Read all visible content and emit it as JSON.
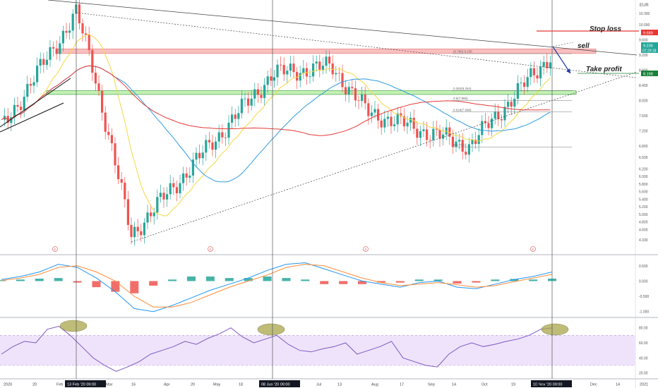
{
  "currency": "EUR",
  "colors": {
    "up": "#26a69a",
    "down": "#ef5350",
    "ma_fast": "#f5d742",
    "ma_mid": "#2e9be3",
    "ma_slow": "#e53935",
    "macd": "#2196f3",
    "signal": "#ff8c3a",
    "rsi_line": "#7e57c2",
    "rsi_band": "#efe3fb",
    "resistance_zone": "#f8b4b4",
    "support_zone": "#b9f0a6",
    "highlight_ellipse": "#a9a64a",
    "stop_loss": "#e53935",
    "price_tag": "#26a69a",
    "arrow": "#1f3aa6"
  },
  "annotations": {
    "stop_loss": "Stop loss",
    "sell": "sell",
    "take_profit": "Take profit"
  },
  "price_tags": {
    "stop_loss": "9.689",
    "current": "9.236",
    "countdown": "07:29:18",
    "take_profit": "8.198"
  },
  "time_labels": {
    "crosshair_1": "13 Feb '20   09:00",
    "crosshair_2": "08 Jun '20   09:00",
    "crosshair_3": "10 Nov '20   09:00"
  },
  "chart_data": [
    {
      "type": "candlestick",
      "y_ticks": [
        "10.300",
        "10.000",
        "9.600",
        "9.200",
        "8.800",
        "8.400",
        "8.000",
        "7.600",
        "7.200",
        "6.800",
        "6.500",
        "6.200",
        "6.000",
        "5.800",
        "5.600",
        "5.400",
        "5.200",
        "5.000",
        "4.800",
        "4.600",
        "4.330"
      ],
      "ylim": [
        4.33,
        10.5
      ],
      "x_ticks": [
        "2020",
        "20",
        "Feb",
        "13 Feb '20",
        "Mar",
        "16",
        "Apr",
        "20",
        "May",
        "18",
        "08 Jun '20",
        "Jul",
        "13",
        "Aug",
        "17",
        "Sep",
        "14",
        "Oct",
        "19",
        "Nov",
        "10 Nov '20",
        "Dec",
        "14",
        "2021"
      ],
      "fib_levels": [
        {
          "label": "(0.786) 9.236",
          "value": 9.236
        },
        {
          "label": "0.382(8.264)",
          "value": 8.264
        },
        {
          "label": "0.5(7.995)",
          "value": 8.0
        },
        {
          "label": "0.618(7.698)",
          "value": 7.698
        },
        {
          "label": "0(6.774)",
          "value": 6.774
        }
      ],
      "swing_points": [
        {
          "date": "13 Feb '20",
          "close": 10.3
        },
        {
          "date": "Mar",
          "close": 9.0
        },
        {
          "date": "16 Mar",
          "close": 4.46
        },
        {
          "date": "08 Jun '20",
          "close": 8.7
        },
        {
          "date": "Jul",
          "close": 8.9
        },
        {
          "date": "Aug",
          "close": 7.7
        },
        {
          "date": "Sep",
          "close": 6.8
        },
        {
          "date": "10 Nov '20",
          "close": 9.24
        }
      ],
      "moving_averages": [
        "yellow",
        "blue",
        "red"
      ],
      "resistance_zone": [
        9.24,
        9.36
      ],
      "support_zone": [
        8.16,
        8.26
      ],
      "stop_loss": 9.689,
      "take_profit": 8.198
    },
    {
      "type": "bar",
      "indicator": "MACD",
      "y_ticks": [
        "0.500",
        "0.000",
        "-0.500",
        "-1.000"
      ],
      "ylim": [
        -1.1,
        0.75
      ],
      "series": [
        {
          "name": "MACD",
          "values": [
            0.05,
            0.15,
            0.3,
            0.55,
            0.45,
            0.1,
            -0.35,
            -0.9,
            -1.0,
            -0.8,
            -0.55,
            -0.3,
            -0.1,
            0.1,
            0.35,
            0.55,
            0.6,
            0.4,
            0.2,
            0.0,
            -0.1,
            -0.2,
            -0.05,
            0.0,
            -0.2,
            -0.25,
            -0.1,
            0.05,
            0.15,
            0.3
          ]
        },
        {
          "name": "Signal",
          "values": [
            0.02,
            0.1,
            0.22,
            0.45,
            0.5,
            0.3,
            0.0,
            -0.5,
            -0.85,
            -0.85,
            -0.7,
            -0.45,
            -0.2,
            0.0,
            0.2,
            0.45,
            0.55,
            0.5,
            0.3,
            0.1,
            -0.05,
            -0.15,
            -0.1,
            -0.05,
            -0.12,
            -0.2,
            -0.15,
            -0.02,
            0.1,
            0.22
          ]
        }
      ]
    },
    {
      "type": "line",
      "indicator": "RSI",
      "y_ticks": [
        "80.00",
        "60.00",
        "40.00",
        "20.00"
      ],
      "ylim": [
        15,
        90
      ],
      "band": [
        30,
        70
      ],
      "series": [
        {
          "name": "RSI",
          "values": [
            45,
            55,
            62,
            60,
            78,
            82,
            70,
            55,
            40,
            30,
            22,
            28,
            35,
            45,
            50,
            55,
            62,
            58,
            66,
            72,
            80,
            68,
            60,
            65,
            70,
            58,
            50,
            48,
            52,
            55,
            60,
            45,
            50,
            55,
            62,
            40,
            35,
            30,
            28,
            45,
            55,
            60,
            55,
            58,
            62,
            65,
            70,
            78,
            80
          ]
        }
      ]
    }
  ]
}
